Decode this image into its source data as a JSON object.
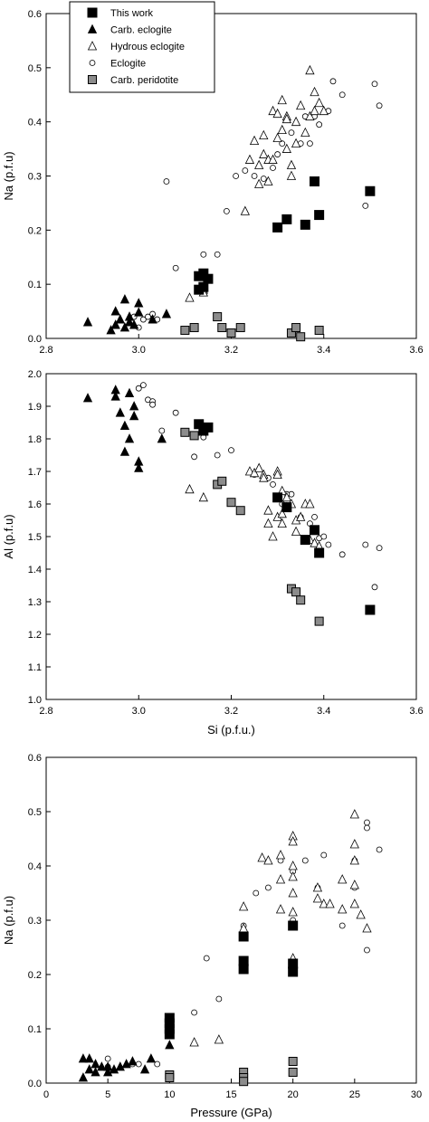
{
  "colors": {
    "this_work": "#000000",
    "carb_eclogite": "#000000",
    "hydrous_eclogite": "#ffffff",
    "eclogite": "#ffffff",
    "carb_peridotite": "#8c8c8c"
  },
  "chart_data": [
    {
      "type": "scatter",
      "title": "",
      "xlabel": "",
      "ylabel": "Na (p.f.u)",
      "xlim": [
        2.8,
        3.6
      ],
      "ylim": [
        0,
        0.6
      ],
      "xticks": [
        "2.8",
        "3.0",
        "3.2",
        "3.4",
        "3.6"
      ],
      "yticks": [
        "0.0",
        "0.1",
        "0.2",
        "0.3",
        "0.4",
        "0.5",
        "0.6"
      ],
      "legend": "top-left",
      "legend_entries": [
        "This work",
        "Carb. eclogite",
        "Hydrous eclogite",
        "Eclogite",
        "Carb. peridotite"
      ],
      "series": [
        {
          "name": "This work",
          "marker": "square-filled",
          "x": [
            3.13,
            3.14,
            3.15,
            3.14,
            3.13,
            3.3,
            3.32,
            3.36,
            3.38,
            3.39,
            3.5
          ],
          "y": [
            0.115,
            0.12,
            0.11,
            0.095,
            0.09,
            0.205,
            0.22,
            0.21,
            0.29,
            0.228,
            0.272
          ]
        },
        {
          "name": "Carb. eclogite",
          "marker": "triangle-filled",
          "x": [
            2.89,
            2.94,
            2.95,
            2.96,
            2.97,
            2.98,
            2.99,
            2.97,
            3.0,
            3.0,
            2.95,
            3.03,
            3.06,
            2.98
          ],
          "y": [
            0.03,
            0.015,
            0.05,
            0.035,
            0.072,
            0.03,
            0.025,
            0.02,
            0.048,
            0.065,
            0.025,
            0.035,
            0.045,
            0.04
          ]
        },
        {
          "name": "Hydrous eclogite",
          "marker": "triangle-open",
          "x": [
            3.11,
            3.14,
            3.14,
            3.23,
            3.24,
            3.25,
            3.26,
            3.27,
            3.27,
            3.28,
            3.29,
            3.3,
            3.3,
            3.31,
            3.31,
            3.32,
            3.32,
            3.33,
            3.33,
            3.34,
            3.34,
            3.35,
            3.36,
            3.37,
            3.37,
            3.38,
            3.38,
            3.39,
            3.4,
            3.29,
            3.32,
            3.26,
            3.28
          ],
          "y": [
            0.075,
            0.09,
            0.085,
            0.235,
            0.33,
            0.365,
            0.32,
            0.34,
            0.375,
            0.33,
            0.42,
            0.415,
            0.37,
            0.385,
            0.44,
            0.41,
            0.405,
            0.32,
            0.3,
            0.4,
            0.36,
            0.43,
            0.38,
            0.41,
            0.495,
            0.455,
            0.42,
            0.435,
            0.42,
            0.33,
            0.35,
            0.285,
            0.29
          ]
        },
        {
          "name": "Eclogite",
          "marker": "circle-open",
          "x": [
            2.99,
            3.0,
            3.01,
            3.02,
            3.03,
            3.04,
            3.06,
            3.08,
            3.14,
            3.17,
            3.19,
            3.21,
            3.23,
            3.25,
            3.27,
            3.29,
            3.3,
            3.31,
            3.33,
            3.35,
            3.36,
            3.37,
            3.38,
            3.39,
            3.41,
            3.42,
            3.44,
            3.49,
            3.51,
            3.52
          ],
          "y": [
            0.04,
            0.02,
            0.035,
            0.04,
            0.045,
            0.035,
            0.29,
            0.13,
            0.155,
            0.155,
            0.235,
            0.3,
            0.31,
            0.3,
            0.295,
            0.315,
            0.34,
            0.36,
            0.38,
            0.36,
            0.41,
            0.36,
            0.41,
            0.395,
            0.42,
            0.475,
            0.45,
            0.245,
            0.47,
            0.43
          ]
        },
        {
          "name": "Carb. peridotite",
          "marker": "square-gray",
          "x": [
            3.1,
            3.12,
            3.17,
            3.18,
            3.2,
            3.22,
            3.33,
            3.34,
            3.35,
            3.39
          ],
          "y": [
            0.015,
            0.02,
            0.04,
            0.02,
            0.01,
            0.02,
            0.01,
            0.02,
            0.003,
            0.015
          ]
        }
      ]
    },
    {
      "type": "scatter",
      "title": "",
      "xlabel": "Si (p.f.u.)",
      "ylabel": "Al (p.f.u)",
      "xlim": [
        2.8,
        3.6
      ],
      "ylim": [
        1.0,
        2.0
      ],
      "xticks": [
        "2.8",
        "3.0",
        "3.2",
        "3.4",
        "3.6"
      ],
      "yticks": [
        "1.0",
        "1.1",
        "1.2",
        "1.3",
        "1.4",
        "1.5",
        "1.6",
        "1.7",
        "1.8",
        "1.9",
        "2.0"
      ],
      "legend": "none",
      "series": [
        {
          "name": "This work",
          "marker": "square-filled",
          "x": [
            3.13,
            3.14,
            3.15,
            3.3,
            3.32,
            3.36,
            3.38,
            3.39,
            3.5
          ],
          "y": [
            1.845,
            1.825,
            1.835,
            1.62,
            1.59,
            1.49,
            1.52,
            1.45,
            1.275
          ]
        },
        {
          "name": "Carb. eclogite",
          "marker": "triangle-filled",
          "x": [
            2.89,
            2.95,
            2.95,
            2.96,
            2.97,
            2.98,
            2.99,
            3.0,
            3.0,
            2.98,
            2.99,
            2.97,
            3.05
          ],
          "y": [
            1.925,
            1.93,
            1.95,
            1.88,
            1.76,
            1.94,
            1.87,
            1.73,
            1.71,
            1.8,
            1.9,
            1.84,
            1.8
          ]
        },
        {
          "name": "Hydrous eclogite",
          "marker": "triangle-open",
          "x": [
            3.11,
            3.14,
            3.24,
            3.25,
            3.26,
            3.27,
            3.28,
            3.28,
            3.29,
            3.3,
            3.3,
            3.31,
            3.31,
            3.32,
            3.32,
            3.33,
            3.34,
            3.34,
            3.35,
            3.36,
            3.37,
            3.37,
            3.38,
            3.39,
            3.27,
            3.3,
            3.31
          ],
          "y": [
            1.645,
            1.62,
            1.7,
            1.695,
            1.71,
            1.69,
            1.58,
            1.54,
            1.5,
            1.7,
            1.56,
            1.64,
            1.57,
            1.59,
            1.62,
            1.6,
            1.515,
            1.55,
            1.56,
            1.6,
            1.49,
            1.6,
            1.48,
            1.47,
            1.68,
            1.69,
            1.54
          ]
        },
        {
          "name": "Eclogite",
          "marker": "circle-open",
          "x": [
            3.0,
            3.01,
            3.02,
            3.03,
            3.05,
            3.08,
            3.12,
            3.14,
            3.17,
            3.2,
            3.25,
            3.28,
            3.29,
            3.31,
            3.33,
            3.35,
            3.37,
            3.38,
            3.39,
            3.4,
            3.41,
            3.44,
            3.49,
            3.51,
            3.52,
            3.03,
            3.32
          ],
          "y": [
            1.955,
            1.965,
            1.92,
            1.915,
            1.825,
            1.88,
            1.745,
            1.805,
            1.75,
            1.765,
            1.69,
            1.68,
            1.66,
            1.6,
            1.63,
            1.56,
            1.54,
            1.56,
            1.495,
            1.5,
            1.475,
            1.445,
            1.475,
            1.345,
            1.465,
            1.905,
            1.63
          ]
        },
        {
          "name": "Carb. peridotite",
          "marker": "square-gray",
          "x": [
            3.1,
            3.12,
            3.17,
            3.18,
            3.2,
            3.22,
            3.33,
            3.34,
            3.35,
            3.39
          ],
          "y": [
            1.82,
            1.81,
            1.66,
            1.67,
            1.605,
            1.58,
            1.34,
            1.33,
            1.305,
            1.24
          ]
        }
      ]
    },
    {
      "type": "scatter",
      "title": "",
      "xlabel": "Pressure (GPa)",
      "ylabel": "Na (p.f.u)",
      "xlim": [
        0,
        30
      ],
      "ylim": [
        0,
        0.6
      ],
      "xticks": [
        "0",
        "5",
        "10",
        "15",
        "20",
        "25",
        "30"
      ],
      "yticks": [
        "0.0",
        "0.1",
        "0.2",
        "0.3",
        "0.4",
        "0.5",
        "0.6"
      ],
      "legend": "none",
      "series": [
        {
          "name": "This work",
          "marker": "square-filled",
          "x": [
            10,
            10,
            10,
            10,
            16,
            16,
            16,
            20,
            20,
            20
          ],
          "y": [
            0.12,
            0.11,
            0.1,
            0.09,
            0.27,
            0.225,
            0.21,
            0.29,
            0.22,
            0.205
          ]
        },
        {
          "name": "Carb. eclogite",
          "marker": "triangle-filled",
          "x": [
            3,
            3,
            3.5,
            3.5,
            4,
            4.5,
            5,
            5,
            6,
            6.5,
            7,
            8,
            8.5,
            10,
            5.5,
            4
          ],
          "y": [
            0.045,
            0.01,
            0.045,
            0.025,
            0.035,
            0.03,
            0.02,
            0.03,
            0.03,
            0.035,
            0.04,
            0.025,
            0.045,
            0.07,
            0.025,
            0.02
          ]
        },
        {
          "name": "Hydrous eclogite",
          "marker": "triangle-open",
          "x": [
            12,
            14,
            16,
            16,
            17.5,
            18,
            19,
            19,
            19,
            20,
            20,
            20,
            20,
            20,
            20,
            22,
            22,
            22.5,
            23,
            24,
            24,
            25,
            25,
            25,
            25,
            25,
            25.5,
            26,
            20
          ],
          "y": [
            0.075,
            0.08,
            0.285,
            0.325,
            0.415,
            0.41,
            0.32,
            0.375,
            0.42,
            0.455,
            0.445,
            0.4,
            0.35,
            0.38,
            0.315,
            0.34,
            0.36,
            0.33,
            0.33,
            0.375,
            0.32,
            0.495,
            0.44,
            0.41,
            0.365,
            0.33,
            0.31,
            0.285,
            0.23
          ]
        },
        {
          "name": "Eclogite",
          "marker": "circle-open",
          "x": [
            5,
            5,
            7,
            7.5,
            9,
            12,
            13,
            14,
            16,
            17,
            18,
            19,
            20,
            20,
            20,
            21,
            22,
            22.5,
            24,
            25,
            26,
            26,
            26,
            27,
            25
          ],
          "y": [
            0.045,
            0.03,
            0.035,
            0.035,
            0.035,
            0.13,
            0.23,
            0.155,
            0.29,
            0.35,
            0.36,
            0.41,
            0.39,
            0.3,
            0.29,
            0.41,
            0.36,
            0.42,
            0.29,
            0.41,
            0.47,
            0.48,
            0.245,
            0.43,
            0.36
          ]
        },
        {
          "name": "Carb. peridotite",
          "marker": "square-gray",
          "x": [
            10,
            10,
            16,
            16,
            16,
            20,
            20
          ],
          "y": [
            0.015,
            0.01,
            0.02,
            0.01,
            0.003,
            0.04,
            0.02
          ]
        }
      ]
    }
  ]
}
